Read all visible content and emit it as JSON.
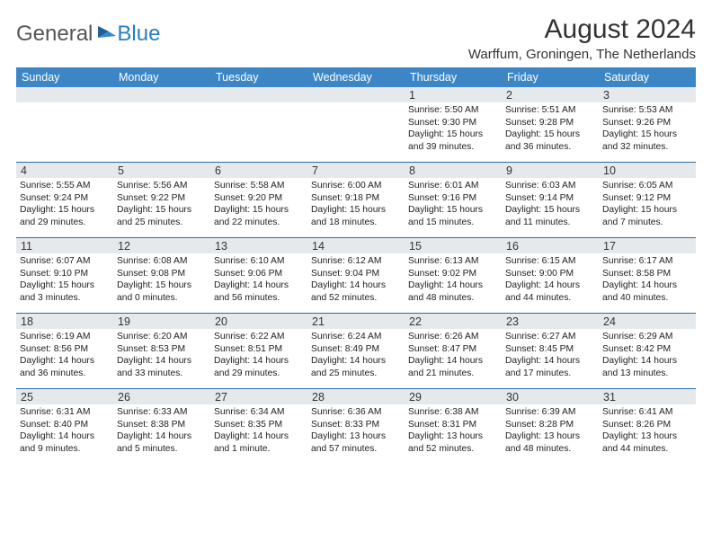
{
  "logo": {
    "general": "General",
    "blue": "Blue"
  },
  "title": "August 2024",
  "location": "Warffum, Groningen, The Netherlands",
  "colors": {
    "header_bg": "#3d86c6",
    "row_stripe": "#e6e9ec",
    "divider": "#2a6ca8",
    "logo_blue": "#2a7fba"
  },
  "day_names": [
    "Sunday",
    "Monday",
    "Tuesday",
    "Wednesday",
    "Thursday",
    "Friday",
    "Saturday"
  ],
  "weeks": [
    [
      {
        "n": "",
        "lines": [
          "",
          "",
          ""
        ]
      },
      {
        "n": "",
        "lines": [
          "",
          "",
          ""
        ]
      },
      {
        "n": "",
        "lines": [
          "",
          "",
          ""
        ]
      },
      {
        "n": "",
        "lines": [
          "",
          "",
          ""
        ]
      },
      {
        "n": "1",
        "lines": [
          "Sunrise: 5:50 AM",
          "Sunset: 9:30 PM",
          "Daylight: 15 hours and 39 minutes."
        ]
      },
      {
        "n": "2",
        "lines": [
          "Sunrise: 5:51 AM",
          "Sunset: 9:28 PM",
          "Daylight: 15 hours and 36 minutes."
        ]
      },
      {
        "n": "3",
        "lines": [
          "Sunrise: 5:53 AM",
          "Sunset: 9:26 PM",
          "Daylight: 15 hours and 32 minutes."
        ]
      }
    ],
    [
      {
        "n": "4",
        "lines": [
          "Sunrise: 5:55 AM",
          "Sunset: 9:24 PM",
          "Daylight: 15 hours and 29 minutes."
        ]
      },
      {
        "n": "5",
        "lines": [
          "Sunrise: 5:56 AM",
          "Sunset: 9:22 PM",
          "Daylight: 15 hours and 25 minutes."
        ]
      },
      {
        "n": "6",
        "lines": [
          "Sunrise: 5:58 AM",
          "Sunset: 9:20 PM",
          "Daylight: 15 hours and 22 minutes."
        ]
      },
      {
        "n": "7",
        "lines": [
          "Sunrise: 6:00 AM",
          "Sunset: 9:18 PM",
          "Daylight: 15 hours and 18 minutes."
        ]
      },
      {
        "n": "8",
        "lines": [
          "Sunrise: 6:01 AM",
          "Sunset: 9:16 PM",
          "Daylight: 15 hours and 15 minutes."
        ]
      },
      {
        "n": "9",
        "lines": [
          "Sunrise: 6:03 AM",
          "Sunset: 9:14 PM",
          "Daylight: 15 hours and 11 minutes."
        ]
      },
      {
        "n": "10",
        "lines": [
          "Sunrise: 6:05 AM",
          "Sunset: 9:12 PM",
          "Daylight: 15 hours and 7 minutes."
        ]
      }
    ],
    [
      {
        "n": "11",
        "lines": [
          "Sunrise: 6:07 AM",
          "Sunset: 9:10 PM",
          "Daylight: 15 hours and 3 minutes."
        ]
      },
      {
        "n": "12",
        "lines": [
          "Sunrise: 6:08 AM",
          "Sunset: 9:08 PM",
          "Daylight: 15 hours and 0 minutes."
        ]
      },
      {
        "n": "13",
        "lines": [
          "Sunrise: 6:10 AM",
          "Sunset: 9:06 PM",
          "Daylight: 14 hours and 56 minutes."
        ]
      },
      {
        "n": "14",
        "lines": [
          "Sunrise: 6:12 AM",
          "Sunset: 9:04 PM",
          "Daylight: 14 hours and 52 minutes."
        ]
      },
      {
        "n": "15",
        "lines": [
          "Sunrise: 6:13 AM",
          "Sunset: 9:02 PM",
          "Daylight: 14 hours and 48 minutes."
        ]
      },
      {
        "n": "16",
        "lines": [
          "Sunrise: 6:15 AM",
          "Sunset: 9:00 PM",
          "Daylight: 14 hours and 44 minutes."
        ]
      },
      {
        "n": "17",
        "lines": [
          "Sunrise: 6:17 AM",
          "Sunset: 8:58 PM",
          "Daylight: 14 hours and 40 minutes."
        ]
      }
    ],
    [
      {
        "n": "18",
        "lines": [
          "Sunrise: 6:19 AM",
          "Sunset: 8:56 PM",
          "Daylight: 14 hours and 36 minutes."
        ]
      },
      {
        "n": "19",
        "lines": [
          "Sunrise: 6:20 AM",
          "Sunset: 8:53 PM",
          "Daylight: 14 hours and 33 minutes."
        ]
      },
      {
        "n": "20",
        "lines": [
          "Sunrise: 6:22 AM",
          "Sunset: 8:51 PM",
          "Daylight: 14 hours and 29 minutes."
        ]
      },
      {
        "n": "21",
        "lines": [
          "Sunrise: 6:24 AM",
          "Sunset: 8:49 PM",
          "Daylight: 14 hours and 25 minutes."
        ]
      },
      {
        "n": "22",
        "lines": [
          "Sunrise: 6:26 AM",
          "Sunset: 8:47 PM",
          "Daylight: 14 hours and 21 minutes."
        ]
      },
      {
        "n": "23",
        "lines": [
          "Sunrise: 6:27 AM",
          "Sunset: 8:45 PM",
          "Daylight: 14 hours and 17 minutes."
        ]
      },
      {
        "n": "24",
        "lines": [
          "Sunrise: 6:29 AM",
          "Sunset: 8:42 PM",
          "Daylight: 14 hours and 13 minutes."
        ]
      }
    ],
    [
      {
        "n": "25",
        "lines": [
          "Sunrise: 6:31 AM",
          "Sunset: 8:40 PM",
          "Daylight: 14 hours and 9 minutes."
        ]
      },
      {
        "n": "26",
        "lines": [
          "Sunrise: 6:33 AM",
          "Sunset: 8:38 PM",
          "Daylight: 14 hours and 5 minutes."
        ]
      },
      {
        "n": "27",
        "lines": [
          "Sunrise: 6:34 AM",
          "Sunset: 8:35 PM",
          "Daylight: 14 hours and 1 minute."
        ]
      },
      {
        "n": "28",
        "lines": [
          "Sunrise: 6:36 AM",
          "Sunset: 8:33 PM",
          "Daylight: 13 hours and 57 minutes."
        ]
      },
      {
        "n": "29",
        "lines": [
          "Sunrise: 6:38 AM",
          "Sunset: 8:31 PM",
          "Daylight: 13 hours and 52 minutes."
        ]
      },
      {
        "n": "30",
        "lines": [
          "Sunrise: 6:39 AM",
          "Sunset: 8:28 PM",
          "Daylight: 13 hours and 48 minutes."
        ]
      },
      {
        "n": "31",
        "lines": [
          "Sunrise: 6:41 AM",
          "Sunset: 8:26 PM",
          "Daylight: 13 hours and 44 minutes."
        ]
      }
    ]
  ]
}
